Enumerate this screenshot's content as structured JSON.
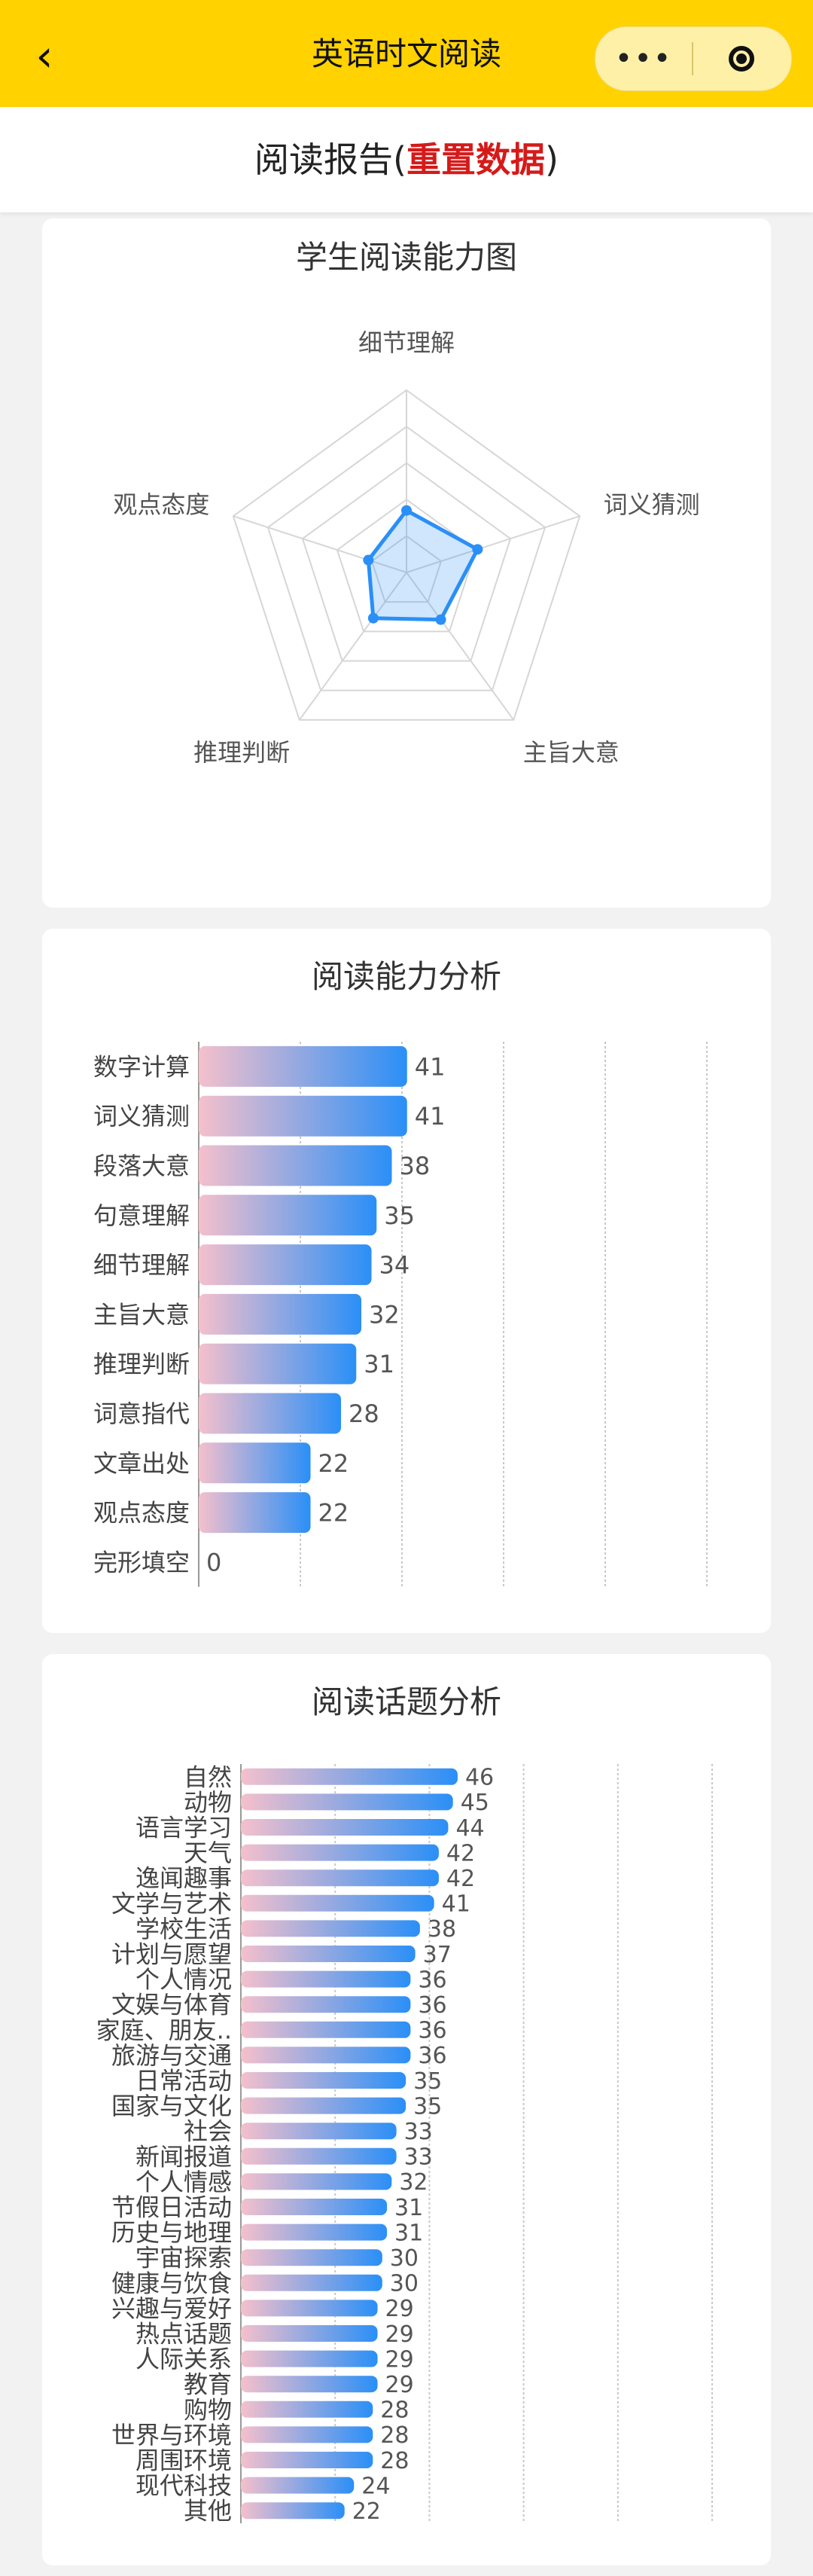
{
  "header": {
    "title": "英语时文阅读",
    "back_icon": "chevron-left-icon",
    "more_label": "•••",
    "close_icon": "target-icon"
  },
  "report": {
    "title_prefix": "阅读报告(",
    "reset_label": "重置数据",
    "title_suffix": ")"
  },
  "colors": {
    "header_bg": "#ffd200",
    "reset_red": "#d51a1a",
    "bar_start": "#f5c0cc",
    "bar_end": "#2a8ff7",
    "radar_line": "#2a8ff7"
  },
  "charts": {
    "radar": {
      "title": "学生阅读能力图",
      "chart_data": {
        "type": "radar",
        "indicators": [
          "细节理解",
          "词义猜测",
          "主旨大意",
          "推理判断",
          "观点态度"
        ],
        "values": [
          34,
          41,
          32,
          31,
          22
        ],
        "max": 100
      }
    },
    "ability": {
      "title": "阅读能力分析",
      "chart_data": {
        "type": "bar",
        "orientation": "horizontal",
        "categories": [
          "数字计算",
          "词义猜测",
          "段落大意",
          "句意理解",
          "细节理解",
          "主旨大意",
          "推理判断",
          "词意指代",
          "文章出处",
          "观点态度",
          "完形填空"
        ],
        "values": [
          41,
          41,
          38,
          35,
          34,
          32,
          31,
          28,
          22,
          22,
          0
        ],
        "xlim": [
          0,
          100
        ]
      }
    },
    "topic": {
      "title": "阅读话题分析",
      "chart_data": {
        "type": "bar",
        "orientation": "horizontal",
        "categories": [
          "自然",
          "动物",
          "语言学习",
          "天气",
          "逸闻趣事",
          "文学与艺术",
          "学校生活",
          "计划与愿望",
          "个人情况",
          "文娱与体育",
          "家庭、朋友..",
          "旅游与交通",
          "日常活动",
          "国家与文化",
          "社会",
          "新闻报道",
          "个人情感",
          "节假日活动",
          "历史与地理",
          "宇宙探索",
          "健康与饮食",
          "兴趣与爱好",
          "热点话题",
          "人际关系",
          "教育",
          "购物",
          "世界与环境",
          "周围环境",
          "现代科技",
          "其他"
        ],
        "values": [
          46,
          45,
          44,
          42,
          42,
          41,
          38,
          37,
          36,
          36,
          36,
          36,
          35,
          35,
          33,
          33,
          32,
          31,
          31,
          30,
          30,
          29,
          29,
          29,
          29,
          28,
          28,
          28,
          24,
          22
        ],
        "xlim": [
          0,
          100
        ]
      }
    }
  }
}
